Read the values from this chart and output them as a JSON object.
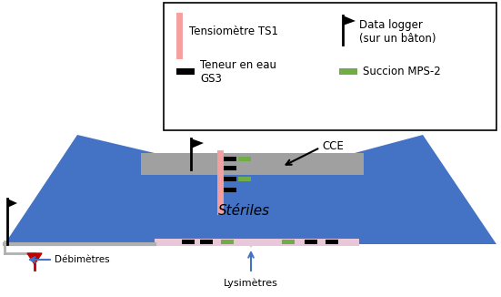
{
  "bg_color": "#ffffff",
  "pile_color": "#4472c4",
  "ccl_color": "#a0a0a0",
  "lysimeter_color": "#e8c8d8",
  "pipe_color": "#b0b0b0",
  "tensiometre_color": "#f4a0a0",
  "black": "#000000",
  "green_sensor": "#70ad47",
  "arrow_color": "#4472c4",
  "debimetre_color": "#c00000",
  "steriles_text": "Stériles",
  "cce_text": "CCE",
  "debimetres_text": "Débimètres",
  "lysimetres_text": "Lysimètres"
}
